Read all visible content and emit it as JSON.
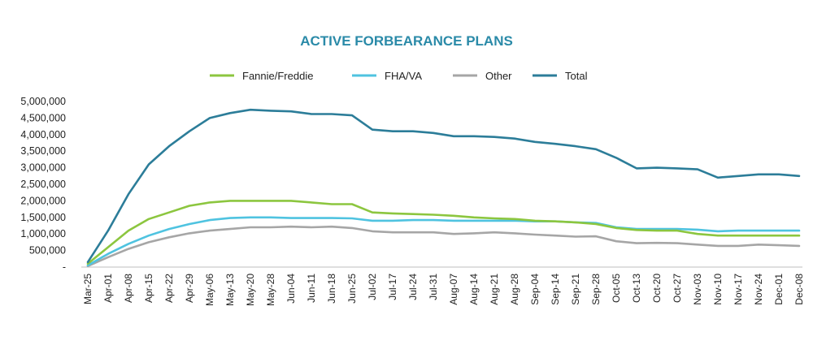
{
  "chart_data": {
    "type": "line",
    "title": "ACTIVE FORBEARANCE PLANS",
    "xlabel": "",
    "ylabel": "",
    "ylim": [
      0,
      5000000
    ],
    "yticks": [
      {
        "value": 0,
        "label": "-"
      },
      {
        "value": 500000,
        "label": "500,000"
      },
      {
        "value": 1000000,
        "label": "1,000,000"
      },
      {
        "value": 1500000,
        "label": "1,500,000"
      },
      {
        "value": 2000000,
        "label": "2,000,000"
      },
      {
        "value": 2500000,
        "label": "2,500,000"
      },
      {
        "value": 3000000,
        "label": "3,000,000"
      },
      {
        "value": 3500000,
        "label": "3,500,000"
      },
      {
        "value": 4000000,
        "label": "4,000,000"
      },
      {
        "value": 4500000,
        "label": "4,500,000"
      },
      {
        "value": 5000000,
        "label": "5,000,000"
      }
    ],
    "grid": false,
    "legend_position": "top-center",
    "categories": [
      "Mar-25",
      "Apr-01",
      "Apr-08",
      "Apr-15",
      "Apr-22",
      "Apr-29",
      "May-06",
      "May-13",
      "May-20",
      "May-28",
      "Jun-04",
      "Jun-11",
      "Jun-18",
      "Jun-25",
      "Jul-02",
      "Jul-17",
      "Jul-24",
      "Jul-31",
      "Aug-07",
      "Aug-14",
      "Aug-21",
      "Aug-28",
      "Sep-04",
      "Sep-14",
      "Sep-21",
      "Sep-28",
      "Oct-05",
      "Oct-13",
      "Oct-20",
      "Oct-27",
      "Nov-03",
      "Nov-10",
      "Nov-17",
      "Nov-24",
      "Dec-01",
      "Dec-08"
    ],
    "series": [
      {
        "name": "Fannie/Freddie",
        "color": "#8cc63f",
        "values": [
          100000,
          600000,
          1100000,
          1450000,
          1650000,
          1850000,
          1950000,
          2000000,
          2000000,
          2000000,
          2000000,
          1950000,
          1900000,
          1900000,
          1650000,
          1620000,
          1600000,
          1580000,
          1550000,
          1500000,
          1470000,
          1450000,
          1400000,
          1380000,
          1350000,
          1300000,
          1180000,
          1120000,
          1100000,
          1100000,
          1000000,
          950000,
          950000,
          950000,
          950000,
          950000
        ]
      },
      {
        "name": "FHA/VA",
        "color": "#4fc3e0",
        "values": [
          50000,
          400000,
          700000,
          950000,
          1150000,
          1300000,
          1420000,
          1480000,
          1500000,
          1500000,
          1480000,
          1480000,
          1480000,
          1470000,
          1400000,
          1400000,
          1420000,
          1420000,
          1400000,
          1400000,
          1400000,
          1400000,
          1380000,
          1380000,
          1350000,
          1330000,
          1200000,
          1150000,
          1150000,
          1150000,
          1130000,
          1080000,
          1100000,
          1100000,
          1100000,
          1100000
        ]
      },
      {
        "name": "Other",
        "color": "#a6a6a6",
        "values": [
          30000,
          300000,
          550000,
          750000,
          900000,
          1020000,
          1100000,
          1150000,
          1200000,
          1200000,
          1220000,
          1200000,
          1220000,
          1180000,
          1080000,
          1050000,
          1050000,
          1050000,
          1000000,
          1020000,
          1050000,
          1020000,
          980000,
          950000,
          920000,
          930000,
          780000,
          720000,
          730000,
          720000,
          680000,
          640000,
          640000,
          680000,
          660000,
          640000
        ]
      },
      {
        "name": "Total",
        "color": "#2c7d99",
        "values": [
          150000,
          1100000,
          2200000,
          3100000,
          3650000,
          4100000,
          4500000,
          4650000,
          4750000,
          4720000,
          4700000,
          4620000,
          4620000,
          4580000,
          4150000,
          4100000,
          4100000,
          4050000,
          3950000,
          3950000,
          3930000,
          3880000,
          3780000,
          3720000,
          3650000,
          3560000,
          3300000,
          2980000,
          3000000,
          2980000,
          2950000,
          2700000,
          2750000,
          2800000,
          2800000,
          2750000
        ]
      }
    ]
  }
}
